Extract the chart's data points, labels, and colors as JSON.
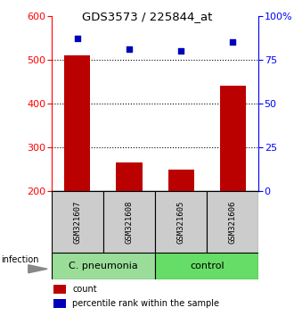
{
  "title": "GDS3573 / 225844_at",
  "samples": [
    "GSM321607",
    "GSM321608",
    "GSM321605",
    "GSM321606"
  ],
  "counts": [
    510,
    265,
    250,
    440
  ],
  "percentile_ranks": [
    87,
    81,
    80,
    85
  ],
  "count_baseline": 200,
  "ylim_left": [
    200,
    600
  ],
  "ylim_right": [
    0,
    100
  ],
  "yticks_left": [
    200,
    300,
    400,
    500,
    600
  ],
  "yticks_right": [
    0,
    25,
    50,
    75,
    100
  ],
  "bar_color": "#bb0000",
  "dot_color": "#0000bb",
  "grid_ticks": [
    300,
    400,
    500
  ],
  "groups": [
    "C. pneumonia",
    "control"
  ],
  "group_colors": [
    "#99dd99",
    "#66dd66"
  ],
  "sample_box_color": "#cccccc",
  "legend_count_color": "#bb0000",
  "legend_pct_color": "#0000bb",
  "infection_label": "infection",
  "bar_width": 0.5
}
